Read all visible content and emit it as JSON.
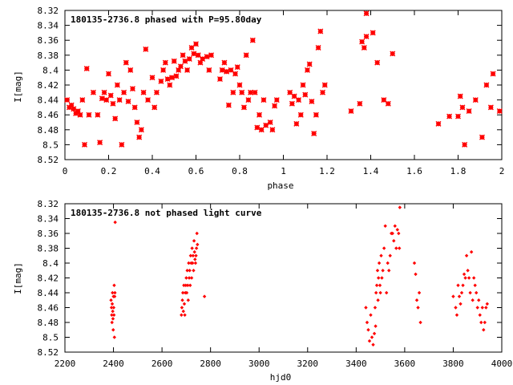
{
  "marker_color": "#ff0000",
  "chart_data": [
    {
      "type": "scatter",
      "title": "180135-2736.8 phased with P=95.80day",
      "xlabel": "phase",
      "ylabel": "I[mag]",
      "xlim": [
        0,
        2
      ],
      "ylim": [
        8.52,
        8.32
      ],
      "y_inverted": true,
      "x_ticks": [
        "0",
        "0.2",
        "0.4",
        "0.6",
        "0.8",
        "1",
        "1.2",
        "1.4",
        "1.6",
        "1.8",
        "2"
      ],
      "y_ticks": [
        "8.32",
        "8.34",
        "8.36",
        "8.38",
        "8.4",
        "8.42",
        "8.44",
        "8.46",
        "8.48",
        "8.5",
        "8.52"
      ],
      "grid": false,
      "legend": "none",
      "points": [
        [
          0.01,
          8.44
        ],
        [
          0.02,
          8.45
        ],
        [
          0.03,
          8.447
        ],
        [
          0.04,
          8.452
        ],
        [
          0.05,
          8.458
        ],
        [
          0.06,
          8.455
        ],
        [
          0.07,
          8.46
        ],
        [
          0.08,
          8.44
        ],
        [
          0.09,
          8.5
        ],
        [
          0.1,
          8.398
        ],
        [
          0.11,
          8.46
        ],
        [
          0.13,
          8.43
        ],
        [
          0.15,
          8.46
        ],
        [
          0.16,
          8.497
        ],
        [
          0.17,
          8.438
        ],
        [
          0.18,
          8.43
        ],
        [
          0.19,
          8.44
        ],
        [
          0.2,
          8.405
        ],
        [
          0.21,
          8.434
        ],
        [
          0.22,
          8.445
        ],
        [
          0.23,
          8.465
        ],
        [
          0.24,
          8.42
        ],
        [
          0.25,
          8.44
        ],
        [
          0.26,
          8.5
        ],
        [
          0.27,
          8.43
        ],
        [
          0.28,
          8.39
        ],
        [
          0.29,
          8.442
        ],
        [
          0.3,
          8.4
        ],
        [
          0.31,
          8.425
        ],
        [
          0.32,
          8.45
        ],
        [
          0.33,
          8.47
        ],
        [
          0.34,
          8.49
        ],
        [
          0.35,
          8.48
        ],
        [
          0.36,
          8.43
        ],
        [
          0.37,
          8.372
        ],
        [
          0.38,
          8.44
        ],
        [
          0.4,
          8.41
        ],
        [
          0.41,
          8.45
        ],
        [
          0.42,
          8.43
        ],
        [
          0.44,
          8.415
        ],
        [
          0.45,
          8.4
        ],
        [
          0.46,
          8.39
        ],
        [
          0.47,
          8.412
        ],
        [
          0.48,
          8.42
        ],
        [
          0.49,
          8.41
        ],
        [
          0.5,
          8.388
        ],
        [
          0.51,
          8.408
        ],
        [
          0.52,
          8.4
        ],
        [
          0.53,
          8.395
        ],
        [
          0.54,
          8.38
        ],
        [
          0.55,
          8.388
        ],
        [
          0.56,
          8.4
        ],
        [
          0.57,
          8.385
        ],
        [
          0.58,
          8.37
        ],
        [
          0.59,
          8.378
        ],
        [
          0.6,
          8.365
        ],
        [
          0.61,
          8.38
        ],
        [
          0.62,
          8.39
        ],
        [
          0.63,
          8.385
        ],
        [
          0.65,
          8.382
        ],
        [
          0.66,
          8.4
        ],
        [
          0.67,
          8.38
        ],
        [
          0.71,
          8.412
        ],
        [
          0.72,
          8.4
        ],
        [
          0.73,
          8.39
        ],
        [
          0.74,
          8.402
        ],
        [
          0.75,
          8.447
        ],
        [
          0.76,
          8.4
        ],
        [
          0.77,
          8.43
        ],
        [
          0.78,
          8.405
        ],
        [
          0.79,
          8.396
        ],
        [
          0.8,
          8.42
        ],
        [
          0.81,
          8.43
        ],
        [
          0.82,
          8.45
        ],
        [
          0.83,
          8.38
        ],
        [
          0.84,
          8.44
        ],
        [
          0.85,
          8.43
        ],
        [
          0.86,
          8.36
        ],
        [
          0.87,
          8.43
        ],
        [
          0.88,
          8.477
        ],
        [
          0.89,
          8.46
        ],
        [
          0.9,
          8.48
        ],
        [
          0.91,
          8.44
        ],
        [
          0.92,
          8.474
        ],
        [
          0.94,
          8.47
        ],
        [
          0.95,
          8.48
        ],
        [
          0.96,
          8.448
        ],
        [
          0.97,
          8.44
        ],
        [
          1.03,
          8.43
        ],
        [
          1.04,
          8.445
        ],
        [
          1.05,
          8.435
        ],
        [
          1.06,
          8.472
        ],
        [
          1.07,
          8.44
        ],
        [
          1.08,
          8.46
        ],
        [
          1.09,
          8.42
        ],
        [
          1.1,
          8.433
        ],
        [
          1.11,
          8.4
        ],
        [
          1.12,
          8.392
        ],
        [
          1.13,
          8.442
        ],
        [
          1.14,
          8.485
        ],
        [
          1.15,
          8.46
        ],
        [
          1.16,
          8.37
        ],
        [
          1.17,
          8.348
        ],
        [
          1.18,
          8.43
        ],
        [
          1.19,
          8.42
        ],
        [
          1.31,
          8.455
        ],
        [
          1.35,
          8.445
        ],
        [
          1.36,
          8.362
        ],
        [
          1.37,
          8.37
        ],
        [
          1.38,
          8.355
        ],
        [
          1.38,
          8.324
        ],
        [
          1.41,
          8.35
        ],
        [
          1.43,
          8.39
        ],
        [
          1.46,
          8.44
        ],
        [
          1.48,
          8.445
        ],
        [
          1.5,
          8.378
        ],
        [
          1.71,
          8.472
        ],
        [
          1.76,
          8.462
        ],
        [
          1.8,
          8.462
        ],
        [
          1.81,
          8.435
        ],
        [
          1.82,
          8.45
        ],
        [
          1.83,
          8.5
        ],
        [
          1.85,
          8.455
        ],
        [
          1.88,
          8.44
        ],
        [
          1.91,
          8.49
        ],
        [
          1.93,
          8.42
        ],
        [
          1.95,
          8.45
        ],
        [
          1.96,
          8.405
        ],
        [
          1.99,
          8.455
        ]
      ]
    },
    {
      "type": "scatter",
      "title": "180135-2736.8 not phased light curve",
      "xlabel": "hjd0",
      "ylabel": "I[mag]",
      "xlim": [
        2200,
        4000
      ],
      "ylim": [
        8.52,
        8.32
      ],
      "y_inverted": true,
      "x_ticks": [
        "2200",
        "2400",
        "2600",
        "2800",
        "3000",
        "3200",
        "3400",
        "3600",
        "3800",
        "4000"
      ],
      "y_ticks": [
        "8.32",
        "8.34",
        "8.36",
        "8.38",
        "8.4",
        "8.42",
        "8.44",
        "8.46",
        "8.48",
        "8.5",
        "8.52"
      ],
      "grid": false,
      "legend": "none",
      "points": [
        [
          2390,
          8.45
        ],
        [
          2392,
          8.46
        ],
        [
          2393,
          8.47
        ],
        [
          2394,
          8.48
        ],
        [
          2395,
          8.455
        ],
        [
          2396,
          8.44
        ],
        [
          2397,
          8.465
        ],
        [
          2398,
          8.475
        ],
        [
          2399,
          8.49
        ],
        [
          2400,
          8.445
        ],
        [
          2401,
          8.46
        ],
        [
          2402,
          8.47
        ],
        [
          2403,
          8.43
        ],
        [
          2404,
          8.5
        ],
        [
          2405,
          8.445
        ],
        [
          2406,
          8.44
        ],
        [
          2407,
          8.345
        ],
        [
          2680,
          8.47
        ],
        [
          2682,
          8.46
        ],
        [
          2684,
          8.45
        ],
        [
          2686,
          8.44
        ],
        [
          2688,
          8.465
        ],
        [
          2690,
          8.43
        ],
        [
          2692,
          8.455
        ],
        [
          2694,
          8.47
        ],
        [
          2696,
          8.44
        ],
        [
          2698,
          8.43
        ],
        [
          2700,
          8.42
        ],
        [
          2702,
          8.44
        ],
        [
          2704,
          8.41
        ],
        [
          2706,
          8.43
        ],
        [
          2708,
          8.45
        ],
        [
          2710,
          8.4
        ],
        [
          2712,
          8.42
        ],
        [
          2714,
          8.41
        ],
        [
          2716,
          8.43
        ],
        [
          2718,
          8.39
        ],
        [
          2720,
          8.4
        ],
        [
          2722,
          8.42
        ],
        [
          2724,
          8.38
        ],
        [
          2726,
          8.4
        ],
        [
          2728,
          8.39
        ],
        [
          2730,
          8.41
        ],
        [
          2732,
          8.37
        ],
        [
          2734,
          8.385
        ],
        [
          2736,
          8.395
        ],
        [
          2738,
          8.4
        ],
        [
          2740,
          8.39
        ],
        [
          2742,
          8.38
        ],
        [
          2744,
          8.36
        ],
        [
          2746,
          8.375
        ],
        [
          2775,
          8.445
        ],
        [
          3440,
          8.46
        ],
        [
          3445,
          8.48
        ],
        [
          3450,
          8.49
        ],
        [
          3455,
          8.505
        ],
        [
          3460,
          8.47
        ],
        [
          3465,
          8.5
        ],
        [
          3470,
          8.51
        ],
        [
          3475,
          8.495
        ],
        [
          3478,
          8.46
        ],
        [
          3480,
          8.485
        ],
        [
          3482,
          8.44
        ],
        [
          3485,
          8.43
        ],
        [
          3488,
          8.41
        ],
        [
          3490,
          8.45
        ],
        [
          3492,
          8.42
        ],
        [
          3495,
          8.4
        ],
        [
          3498,
          8.43
        ],
        [
          3500,
          8.44
        ],
        [
          3503,
          8.39
        ],
        [
          3506,
          8.42
        ],
        [
          3510,
          8.41
        ],
        [
          3515,
          8.38
        ],
        [
          3520,
          8.35
        ],
        [
          3525,
          8.44
        ],
        [
          3530,
          8.4
        ],
        [
          3535,
          8.41
        ],
        [
          3540,
          8.39
        ],
        [
          3545,
          8.36
        ],
        [
          3550,
          8.36
        ],
        [
          3555,
          8.37
        ],
        [
          3560,
          8.35
        ],
        [
          3565,
          8.38
        ],
        [
          3570,
          8.355
        ],
        [
          3575,
          8.36
        ],
        [
          3578,
          8.38
        ],
        [
          3580,
          8.325
        ],
        [
          3640,
          8.4
        ],
        [
          3645,
          8.415
        ],
        [
          3650,
          8.45
        ],
        [
          3655,
          8.46
        ],
        [
          3660,
          8.44
        ],
        [
          3665,
          8.48
        ],
        [
          3800,
          8.445
        ],
        [
          3810,
          8.46
        ],
        [
          3815,
          8.47
        ],
        [
          3820,
          8.43
        ],
        [
          3825,
          8.445
        ],
        [
          3830,
          8.455
        ],
        [
          3835,
          8.44
        ],
        [
          3840,
          8.43
        ],
        [
          3845,
          8.415
        ],
        [
          3850,
          8.42
        ],
        [
          3855,
          8.39
        ],
        [
          3860,
          8.41
        ],
        [
          3865,
          8.42
        ],
        [
          3870,
          8.44
        ],
        [
          3875,
          8.385
        ],
        [
          3880,
          8.45
        ],
        [
          3885,
          8.42
        ],
        [
          3890,
          8.43
        ],
        [
          3895,
          8.44
        ],
        [
          3900,
          8.46
        ],
        [
          3905,
          8.45
        ],
        [
          3910,
          8.47
        ],
        [
          3915,
          8.48
        ],
        [
          3920,
          8.46
        ],
        [
          3925,
          8.49
        ],
        [
          3930,
          8.48
        ],
        [
          3935,
          8.46
        ],
        [
          3940,
          8.455
        ]
      ]
    }
  ]
}
